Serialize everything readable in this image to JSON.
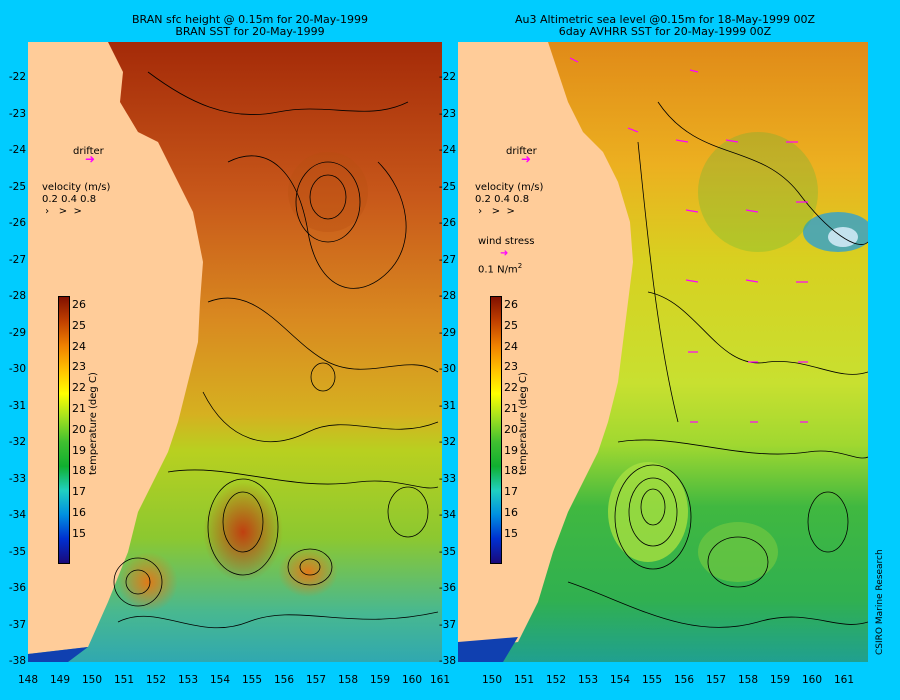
{
  "left_panel": {
    "title_line1": "BRAN sfc height @ 0.15m for 20-May-1999",
    "title_line2": "BRAN SST for 20-May-1999",
    "drifter_label": "drifter",
    "velocity_label": "velocity (m/s)",
    "velocity_values": "0.2 0.4 0.8",
    "colorbar_label": "temperature (deg C)"
  },
  "right_panel": {
    "title_line1": "Au3 Altimetric sea level  @0.15m  for 18-May-1999 00Z",
    "title_line2": "6day AVHRR SST for 20-May-1999 00Z",
    "drifter_label": "drifter",
    "velocity_label": "velocity (m/s)",
    "velocity_values": "0.2 0.4 0.8",
    "wind_label": "wind stress",
    "wind_value": "0.1 N/m",
    "wind_sup": "2",
    "colorbar_label": "temperature (deg C)"
  },
  "credit": "CSIRO Marine Research",
  "axes": {
    "lat_labels": [
      "-22",
      "-23",
      "-24",
      "-25",
      "-26",
      "-27",
      "-28",
      "-29",
      "-30",
      "-31",
      "-32",
      "-33",
      "-34",
      "-35",
      "-36",
      "-37",
      "-38"
    ],
    "lon_labels": [
      "148",
      "149",
      "150",
      "151",
      "152",
      "153",
      "154",
      "155",
      "156",
      "157",
      "158",
      "159",
      "160",
      "161"
    ]
  },
  "colorbar": {
    "ticks": [
      "26",
      "25",
      "24",
      "23",
      "22",
      "21",
      "20",
      "19",
      "18",
      "17",
      "16",
      "15"
    ],
    "colors": [
      "#1a0a7a",
      "#0030d0",
      "#0090e0",
      "#20d0c0",
      "#10b030",
      "#40c030",
      "#a0e020",
      "#ffff00",
      "#ffc000",
      "#f08000",
      "#c04000",
      "#801000"
    ]
  },
  "colors": {
    "background": "#00ccff",
    "land": "#ffcc99",
    "drifter": "#ff00ff"
  }
}
